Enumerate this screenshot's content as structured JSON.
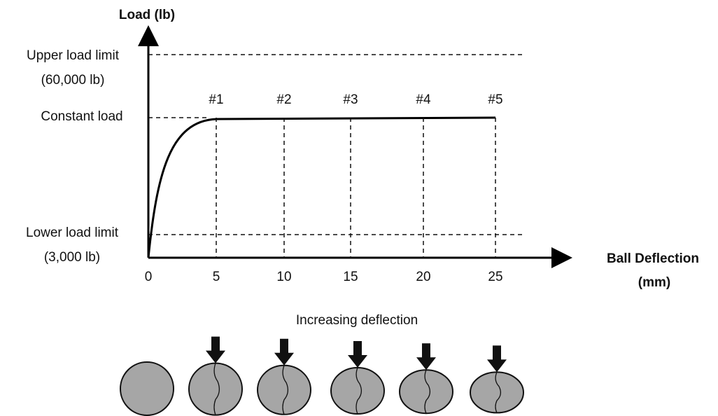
{
  "y_axis_label": "Load (lb)",
  "x_axis_label": [
    "Ball Deflection",
    "(mm)"
  ],
  "levels": [
    {
      "lines": [
        "Upper load limit",
        "(60,000 lb)"
      ]
    },
    {
      "lines": [
        "Constant load"
      ]
    },
    {
      "lines": [
        "Lower load limit",
        "(3,000 lb)"
      ]
    }
  ],
  "x_ticks": [
    "0",
    "5",
    "10",
    "15",
    "20",
    "25"
  ],
  "markers": [
    "#1",
    "#2",
    "#3",
    "#4",
    "#5"
  ],
  "caption": "Increasing deflection"
}
